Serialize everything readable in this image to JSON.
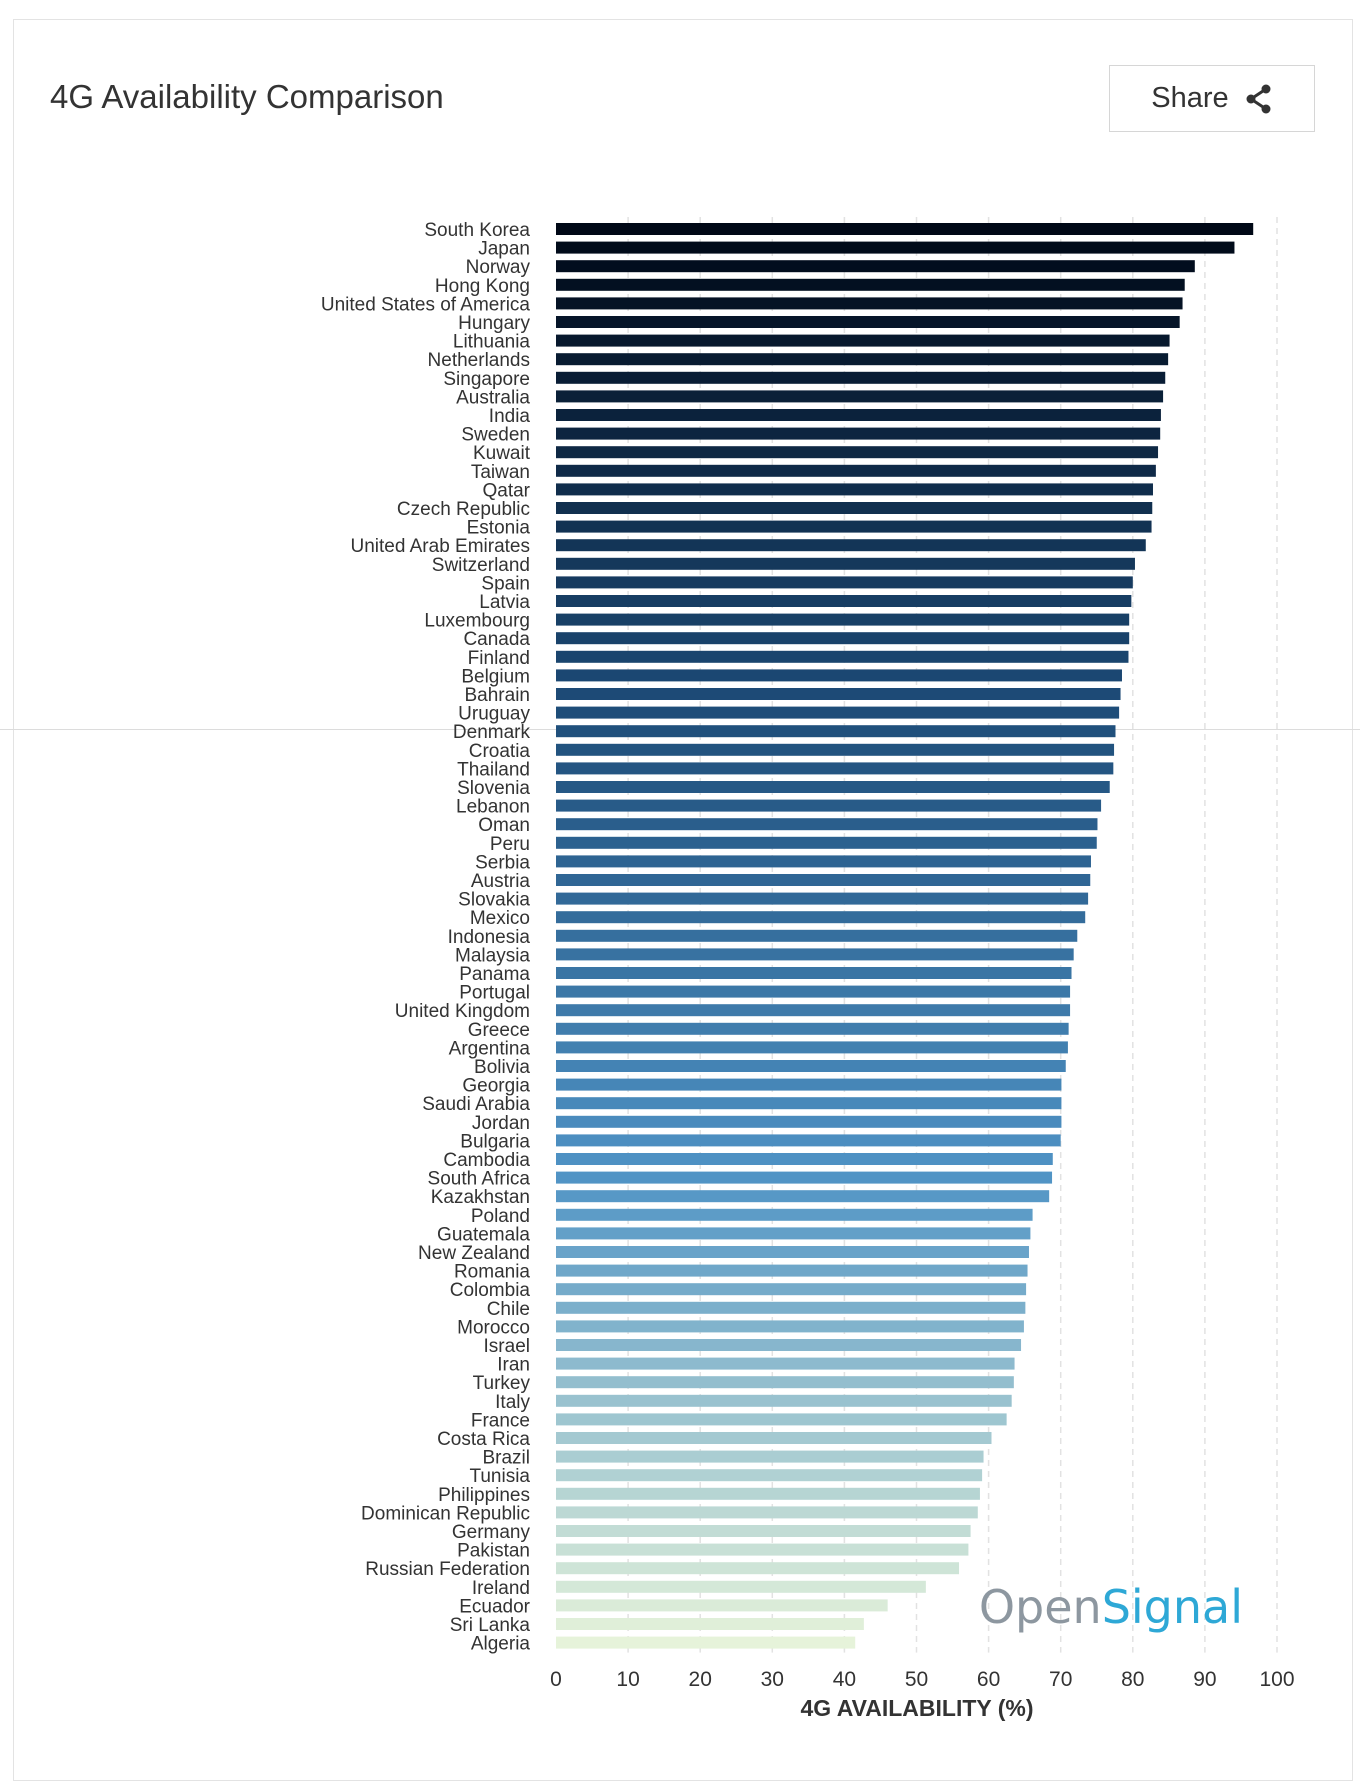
{
  "title": "4G Availability Comparison",
  "share": {
    "label": "Share",
    "icon": "share-icon"
  },
  "logo": {
    "part1": "Open",
    "part2": "Signal"
  },
  "chart_data": {
    "type": "bar",
    "orientation": "horizontal",
    "title": "4G Availability Comparison",
    "xlabel": "4G AVAILABILITY (%)",
    "ylabel": "",
    "xlim": [
      0,
      100
    ],
    "xticks": [
      0,
      10,
      20,
      30,
      40,
      50,
      60,
      70,
      80,
      90,
      100
    ],
    "grid": "vertical dashed",
    "color_scale": [
      "#000816",
      "#1d4b77",
      "#4f93c5",
      "#e6f3da"
    ],
    "categories": [
      "South Korea",
      "Japan",
      "Norway",
      "Hong Kong",
      "United States of America",
      "Hungary",
      "Lithuania",
      "Netherlands",
      "Singapore",
      "Australia",
      "India",
      "Sweden",
      "Kuwait",
      "Taiwan",
      "Qatar",
      "Czech Republic",
      "Estonia",
      "United Arab Emirates",
      "Switzerland",
      "Spain",
      "Latvia",
      "Luxembourg",
      "Canada",
      "Finland",
      "Belgium",
      "Bahrain",
      "Uruguay",
      "Denmark",
      "Croatia",
      "Thailand",
      "Slovenia",
      "Lebanon",
      "Oman",
      "Peru",
      "Serbia",
      "Austria",
      "Slovakia",
      "Mexico",
      "Indonesia",
      "Malaysia",
      "Panama",
      "Portugal",
      "United Kingdom",
      "Greece",
      "Argentina",
      "Bolivia",
      "Georgia",
      "Saudi Arabia",
      "Jordan",
      "Bulgaria",
      "Cambodia",
      "South Africa",
      "Kazakhstan",
      "Poland",
      "Guatemala",
      "New Zealand",
      "Romania",
      "Colombia",
      "Chile",
      "Morocco",
      "Israel",
      "Iran",
      "Turkey",
      "Italy",
      "France",
      "Costa Rica",
      "Brazil",
      "Tunisia",
      "Philippines",
      "Dominican Republic",
      "Germany",
      "Pakistan",
      "Russian Federation",
      "Ireland",
      "Ecuador",
      "Sri Lanka",
      "Algeria"
    ],
    "values": [
      96.7,
      94.1,
      88.6,
      87.2,
      86.9,
      86.5,
      85.1,
      84.9,
      84.5,
      84.2,
      83.9,
      83.8,
      83.5,
      83.2,
      82.8,
      82.7,
      82.6,
      81.8,
      80.3,
      80.0,
      79.8,
      79.5,
      79.5,
      79.4,
      78.5,
      78.3,
      78.1,
      77.6,
      77.4,
      77.3,
      76.8,
      75.6,
      75.1,
      75.0,
      74.2,
      74.1,
      73.8,
      73.4,
      72.3,
      71.8,
      71.5,
      71.3,
      71.3,
      71.1,
      71.0,
      70.7,
      70.1,
      70.1,
      70.1,
      70.0,
      68.9,
      68.8,
      68.4,
      66.1,
      65.8,
      65.6,
      65.4,
      65.2,
      65.1,
      64.9,
      64.5,
      63.6,
      63.5,
      63.2,
      62.5,
      60.4,
      59.3,
      59.1,
      58.8,
      58.5,
      57.5,
      57.2,
      55.9,
      51.3,
      46.0,
      42.7,
      41.5
    ]
  }
}
